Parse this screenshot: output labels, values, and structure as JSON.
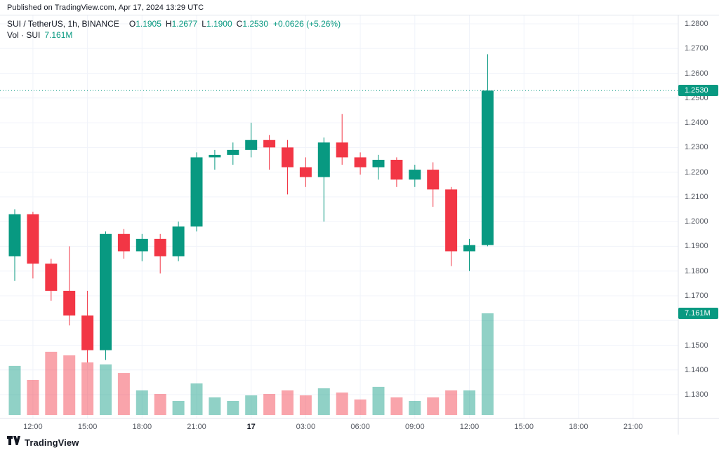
{
  "header": {
    "published": "Published on TradingView.com, Apr 17, 2024 13:29 UTC"
  },
  "legend": {
    "symbol": "SUI / TetherUS, 1h, BINANCE",
    "ohlc": [
      {
        "k": "O",
        "v": "1.1905"
      },
      {
        "k": "H",
        "v": "1.2677"
      },
      {
        "k": "L",
        "v": "1.1900"
      },
      {
        "k": "C",
        "v": "1.2530"
      }
    ],
    "change": "+0.0626 (+5.26%)",
    "volume_label": "Vol · SUI",
    "volume_value": "7.161M"
  },
  "colors": {
    "up": "#089981",
    "down": "#f23645",
    "vol_up": "rgba(8,153,129,0.45)",
    "vol_down": "rgba(242,54,69,0.45)",
    "grid": "#f0f3fa",
    "separator": "#e0e3eb",
    "axis_text": "#555962",
    "badge_price_bg": "#089981",
    "badge_volume_bg": "#089981",
    "last_price_line": "#089981"
  },
  "footer": {
    "brand": "TradingView"
  },
  "chart_data": {
    "type": "candlestick",
    "title": "SUI / TetherUS",
    "interval": "1h",
    "exchange": "BINANCE",
    "legend_note": "Vol · SUI",
    "last_price": 1.253,
    "last_volume": 7.161,
    "volume_unit": "M",
    "ylim": [
      1.125,
      1.285
    ],
    "grid": true,
    "badges": {
      "price": "1.2530",
      "volume": "7.161M"
    },
    "price_axis_labels": [
      "1.2800",
      "1.2700",
      "1.2600",
      "1.2500",
      "1.2400",
      "1.2300",
      "1.2200",
      "1.2100",
      "1.2000",
      "1.1900",
      "1.1800",
      "1.1700",
      "1.1500",
      "1.1400",
      "1.1300"
    ],
    "time_ticks": [
      {
        "label": "12:00",
        "i": 1
      },
      {
        "label": "15:00",
        "i": 4
      },
      {
        "label": "18:00",
        "i": 7
      },
      {
        "label": "21:00",
        "i": 10
      },
      {
        "label": "17",
        "i": 13,
        "major": true
      },
      {
        "label": "03:00",
        "i": 16
      },
      {
        "label": "06:00",
        "i": 19
      },
      {
        "label": "09:00",
        "i": 22
      },
      {
        "label": "12:00",
        "i": 25
      },
      {
        "label": "15:00",
        "i": 28
      },
      {
        "label": "18:00",
        "i": 31
      },
      {
        "label": "21:00",
        "i": 34
      }
    ],
    "candles": [
      {
        "t": "Apr 16 11:00",
        "o": 1.186,
        "h": 1.205,
        "l": 1.176,
        "c": 1.203,
        "v": 3.46
      },
      {
        "t": "Apr 16 12:00",
        "o": 1.203,
        "h": 1.204,
        "l": 1.177,
        "c": 1.183,
        "v": 2.47
      },
      {
        "t": "Apr 16 13:00",
        "o": 1.183,
        "h": 1.185,
        "l": 1.168,
        "c": 1.172,
        "v": 4.45
      },
      {
        "t": "Apr 16 14:00",
        "o": 1.172,
        "h": 1.19,
        "l": 1.158,
        "c": 1.162,
        "v": 4.2
      },
      {
        "t": "Apr 16 15:00",
        "o": 1.162,
        "h": 1.172,
        "l": 1.143,
        "c": 1.148,
        "v": 3.7
      },
      {
        "t": "Apr 16 16:00",
        "o": 1.148,
        "h": 1.196,
        "l": 1.144,
        "c": 1.195,
        "v": 3.56
      },
      {
        "t": "Apr 16 17:00",
        "o": 1.195,
        "h": 1.197,
        "l": 1.185,
        "c": 1.188,
        "v": 2.96
      },
      {
        "t": "Apr 16 18:00",
        "o": 1.188,
        "h": 1.195,
        "l": 1.184,
        "c": 1.193,
        "v": 1.73
      },
      {
        "t": "Apr 16 19:00",
        "o": 1.193,
        "h": 1.195,
        "l": 1.179,
        "c": 1.186,
        "v": 1.48
      },
      {
        "t": "Apr 16 20:00",
        "o": 1.186,
        "h": 1.2,
        "l": 1.184,
        "c": 1.198,
        "v": 0.99
      },
      {
        "t": "Apr 16 21:00",
        "o": 1.198,
        "h": 1.228,
        "l": 1.196,
        "c": 1.226,
        "v": 2.22
      },
      {
        "t": "Apr 16 22:00",
        "o": 1.226,
        "h": 1.229,
        "l": 1.221,
        "c": 1.227,
        "v": 1.24
      },
      {
        "t": "Apr 16 23:00",
        "o": 1.227,
        "h": 1.232,
        "l": 1.223,
        "c": 1.229,
        "v": 0.99
      },
      {
        "t": "Apr 17 00:00",
        "o": 1.229,
        "h": 1.24,
        "l": 1.226,
        "c": 1.233,
        "v": 1.38
      },
      {
        "t": "Apr 17 01:00",
        "o": 1.233,
        "h": 1.235,
        "l": 1.221,
        "c": 1.23,
        "v": 1.48
      },
      {
        "t": "Apr 17 02:00",
        "o": 1.23,
        "h": 1.233,
        "l": 1.211,
        "c": 1.222,
        "v": 1.73
      },
      {
        "t": "Apr 17 03:00",
        "o": 1.222,
        "h": 1.226,
        "l": 1.214,
        "c": 1.218,
        "v": 1.38
      },
      {
        "t": "Apr 17 04:00",
        "o": 1.218,
        "h": 1.234,
        "l": 1.2,
        "c": 1.232,
        "v": 1.88
      },
      {
        "t": "Apr 17 05:00",
        "o": 1.232,
        "h": 1.2435,
        "l": 1.223,
        "c": 1.226,
        "v": 1.58
      },
      {
        "t": "Apr 17 06:00",
        "o": 1.226,
        "h": 1.228,
        "l": 1.219,
        "c": 1.222,
        "v": 1.09
      },
      {
        "t": "Apr 17 07:00",
        "o": 1.222,
        "h": 1.227,
        "l": 1.217,
        "c": 1.225,
        "v": 1.98
      },
      {
        "t": "Apr 17 08:00",
        "o": 1.225,
        "h": 1.226,
        "l": 1.214,
        "c": 1.217,
        "v": 1.24
      },
      {
        "t": "Apr 17 09:00",
        "o": 1.217,
        "h": 1.223,
        "l": 1.214,
        "c": 1.221,
        "v": 0.99
      },
      {
        "t": "Apr 17 10:00",
        "o": 1.221,
        "h": 1.224,
        "l": 1.206,
        "c": 1.213,
        "v": 1.24
      },
      {
        "t": "Apr 17 11:00",
        "o": 1.213,
        "h": 1.214,
        "l": 1.182,
        "c": 1.188,
        "v": 1.73
      },
      {
        "t": "Apr 17 12:00",
        "o": 1.188,
        "h": 1.193,
        "l": 1.18,
        "c": 1.1905,
        "v": 1.73
      },
      {
        "t": "Apr 17 13:00",
        "o": 1.1905,
        "h": 1.2677,
        "l": 1.19,
        "c": 1.253,
        "v": 7.161
      }
    ]
  }
}
